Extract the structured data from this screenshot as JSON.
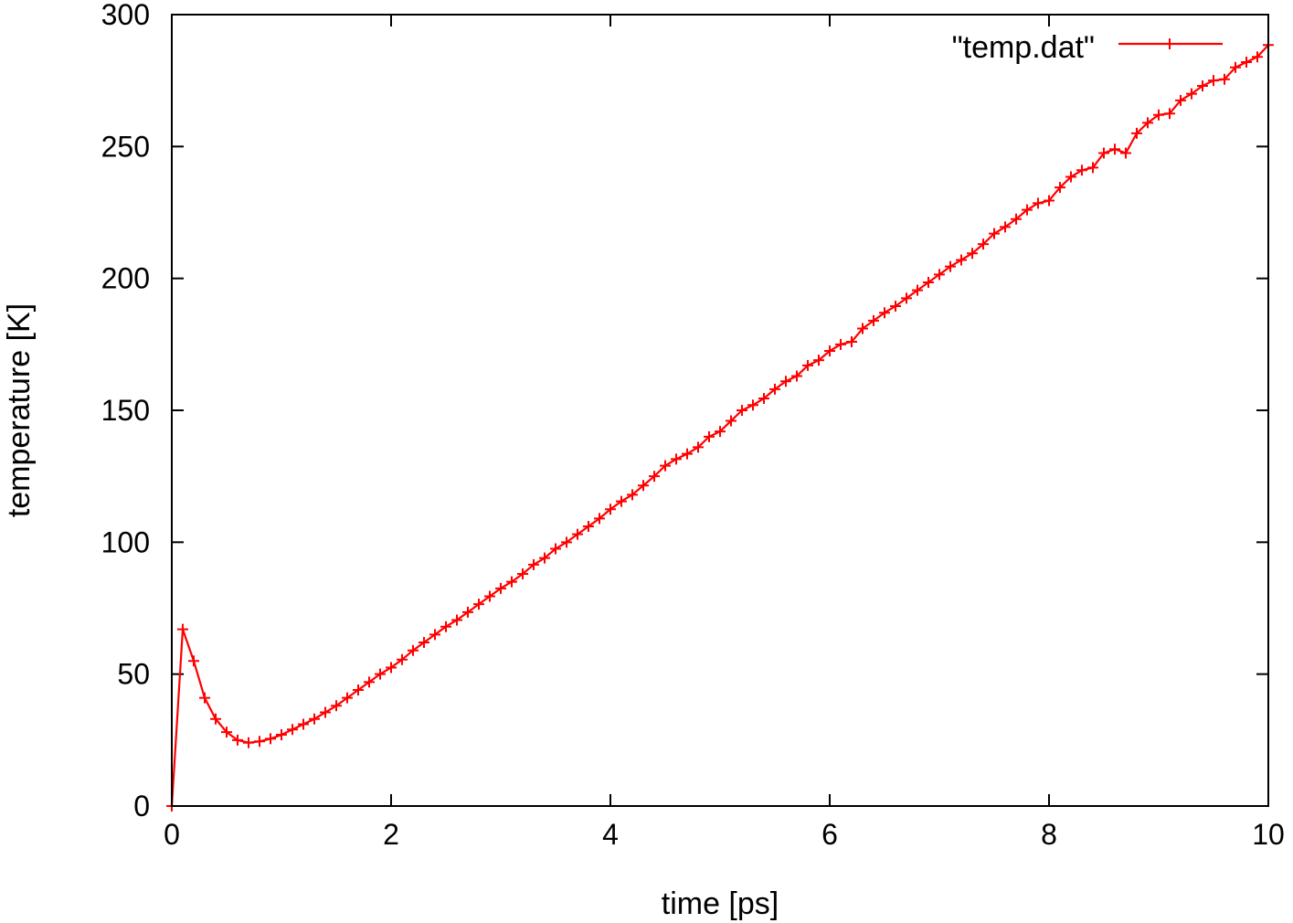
{
  "chart_data": {
    "type": "line",
    "xlabel": "time [ps]",
    "ylabel": "temperature [K]",
    "xlim": [
      0,
      10
    ],
    "ylim": [
      0,
      300
    ],
    "xticks": [
      0,
      2,
      4,
      6,
      8,
      10
    ],
    "yticks": [
      0,
      50,
      100,
      150,
      200,
      250,
      300
    ],
    "grid": false,
    "legend_position": "top-right",
    "series": [
      {
        "name": "\"temp.dat\"",
        "color": "#ff0000",
        "marker": "plus",
        "x": [
          0,
          0.1,
          0.2,
          0.3,
          0.4,
          0.5,
          0.6,
          0.7,
          0.8,
          0.9,
          1.0,
          1.1,
          1.2,
          1.3,
          1.4,
          1.5,
          1.6,
          1.7,
          1.8,
          1.9,
          2.0,
          2.1,
          2.2,
          2.3,
          2.4,
          2.5,
          2.6,
          2.7,
          2.8,
          2.9,
          3.0,
          3.1,
          3.2,
          3.3,
          3.4,
          3.5,
          3.6,
          3.7,
          3.8,
          3.9,
          4.0,
          4.1,
          4.2,
          4.3,
          4.4,
          4.5,
          4.6,
          4.7,
          4.8,
          4.9,
          5.0,
          5.1,
          5.2,
          5.3,
          5.4,
          5.5,
          5.6,
          5.7,
          5.8,
          5.9,
          6.0,
          6.1,
          6.2,
          6.3,
          6.4,
          6.5,
          6.6,
          6.7,
          6.8,
          6.9,
          7.0,
          7.1,
          7.2,
          7.3,
          7.4,
          7.5,
          7.6,
          7.7,
          7.8,
          7.9,
          8.0,
          8.1,
          8.2,
          8.3,
          8.4,
          8.5,
          8.6,
          8.7,
          8.8,
          8.9,
          9.0,
          9.1,
          9.2,
          9.3,
          9.4,
          9.5,
          9.6,
          9.7,
          9.8,
          9.9,
          10.0
        ],
        "y": [
          0,
          67,
          55,
          41,
          33,
          28,
          25,
          24,
          24.5,
          25.5,
          27,
          29,
          31,
          33,
          35.5,
          38,
          41,
          44,
          47,
          50,
          52.5,
          55.5,
          59,
          62,
          65,
          68,
          70.5,
          73.5,
          76.5,
          79.5,
          82.5,
          85,
          88,
          91.5,
          94,
          97.5,
          100,
          103,
          106,
          109,
          112.5,
          115.5,
          118,
          121.5,
          125,
          129,
          131.5,
          133.5,
          136,
          140,
          142,
          146,
          150,
          152,
          154.5,
          158,
          161,
          163,
          167,
          169,
          172.5,
          175,
          176,
          181,
          184,
          187,
          189.5,
          192.5,
          195.5,
          198.5,
          201.5,
          204.5,
          207,
          209.5,
          213,
          217,
          219.5,
          222.5,
          226,
          228.5,
          229.5,
          234.5,
          238.5,
          241,
          242,
          247.5,
          249,
          247.5,
          255,
          259,
          262,
          262.5,
          267.5,
          270,
          273,
          275,
          275.5,
          280,
          282,
          284,
          288.5
        ]
      }
    ]
  }
}
